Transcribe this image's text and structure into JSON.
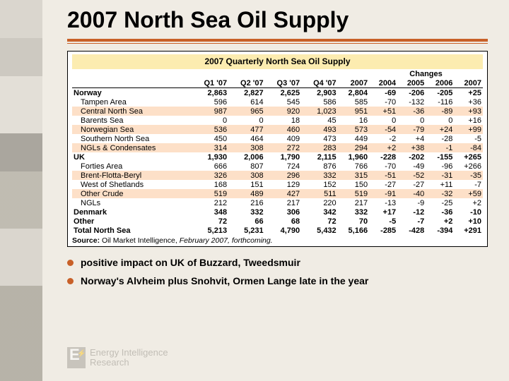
{
  "title": "2007 North Sea Oil Supply",
  "table_title": "2007 Quarterly North Sea Oil Supply",
  "title_row_bg": "#fcecb0",
  "changes_label": "Changes",
  "columns_left": [
    "Q1 '07",
    "Q2 '07",
    "Q3 '07",
    "Q4 '07",
    "2007"
  ],
  "columns_right": [
    "2004",
    "2005",
    "2006",
    "2007"
  ],
  "rows": [
    {
      "section": true,
      "label": "Norway",
      "v": [
        "2,863",
        "2,827",
        "2,625",
        "2,903",
        "2,804",
        "-69",
        "-206",
        "-205",
        "+25"
      ]
    },
    {
      "indent": true,
      "label": "Tampen Area",
      "v": [
        "596",
        "614",
        "545",
        "586",
        "585",
        "-70",
        "-132",
        "-116",
        "+36"
      ]
    },
    {
      "indent": true,
      "label": "Central North Sea",
      "v": [
        "987",
        "965",
        "920",
        "1,023",
        "951",
        "+51",
        "-36",
        "-89",
        "+93"
      ]
    },
    {
      "indent": true,
      "label": "Barents Sea",
      "v": [
        "0",
        "0",
        "18",
        "45",
        "16",
        "0",
        "0",
        "0",
        "+16"
      ]
    },
    {
      "indent": true,
      "label": "Norwegian Sea",
      "v": [
        "536",
        "477",
        "460",
        "493",
        "573",
        "-54",
        "-79",
        "+24",
        "+99"
      ]
    },
    {
      "indent": true,
      "label": "Southern North Sea",
      "v": [
        "450",
        "464",
        "409",
        "473",
        "449",
        "-2",
        "+4",
        "-28",
        "-5"
      ]
    },
    {
      "indent": true,
      "label": "NGLs & Condensates",
      "v": [
        "314",
        "308",
        "272",
        "283",
        "294",
        "+2",
        "+38",
        "-1",
        "-84"
      ]
    },
    {
      "section": true,
      "label": "UK",
      "v": [
        "1,930",
        "2,006",
        "1,790",
        "2,115",
        "1,960",
        "-228",
        "-202",
        "-155",
        "+265"
      ]
    },
    {
      "indent": true,
      "label": "Forties Area",
      "v": [
        "666",
        "807",
        "724",
        "876",
        "766",
        "-70",
        "-49",
        "-96",
        "+266"
      ]
    },
    {
      "indent": true,
      "label": "Brent-Flotta-Beryl",
      "v": [
        "326",
        "308",
        "296",
        "332",
        "315",
        "-51",
        "-52",
        "-31",
        "-35"
      ]
    },
    {
      "indent": true,
      "label": "West of Shetlands",
      "v": [
        "168",
        "151",
        "129",
        "152",
        "150",
        "-27",
        "-27",
        "+11",
        "-7"
      ]
    },
    {
      "indent": true,
      "label": "Other Crude",
      "v": [
        "519",
        "489",
        "427",
        "511",
        "519",
        "-91",
        "-40",
        "-32",
        "+59"
      ]
    },
    {
      "indent": true,
      "label": "NGLs",
      "v": [
        "212",
        "216",
        "217",
        "220",
        "217",
        "-13",
        "-9",
        "-25",
        "+2"
      ]
    },
    {
      "section": true,
      "label": "Denmark",
      "v": [
        "348",
        "332",
        "306",
        "342",
        "332",
        "+17",
        "-12",
        "-36",
        "-10"
      ]
    },
    {
      "section": true,
      "label": "Other",
      "v": [
        "72",
        "66",
        "68",
        "72",
        "70",
        "-5",
        "-7",
        "+2",
        "+10"
      ]
    },
    {
      "section": true,
      "label": "Total North Sea",
      "v": [
        "5,213",
        "5,231",
        "4,790",
        "5,432",
        "5,166",
        "-285",
        "-428",
        "-394",
        "+291"
      ]
    }
  ],
  "source_prefix": "Source:",
  "source_text": " Oil Market Intelligence, ",
  "source_italic": "February 2007, forthcoming.",
  "bullets": [
    "positive impact on UK of Buzzard, Tweedsmuir",
    "Norway's Alvheim plus Snohvit, Ormen Lange late in the year"
  ],
  "logo_line1": "Energy Intelligence",
  "logo_line2": "Research",
  "accent_color": "#c86028",
  "stripe_color": "#fde0c8"
}
